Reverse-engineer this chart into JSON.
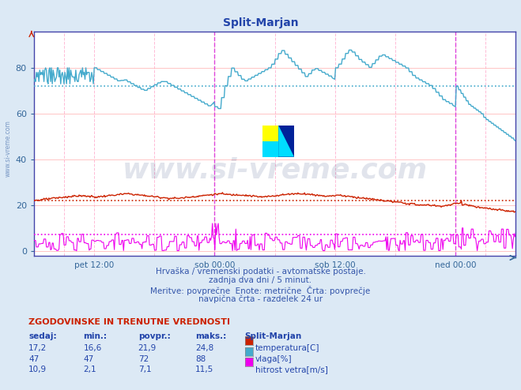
{
  "title": "Split-Marjan",
  "bg_color": "#dce9f5",
  "plot_bg_color": "#ffffff",
  "grid_h_color": "#ffbbbb",
  "grid_v_color": "#ffcccc",
  "x_labels": [
    "pet 12:00",
    "sob 00:00",
    "sob 12:00",
    "ned 00:00"
  ],
  "y_ticks": [
    0,
    20,
    40,
    60,
    80
  ],
  "y_min": -2,
  "y_max": 96,
  "temp_avg": 21.9,
  "temp_color": "#cc2200",
  "humidity_avg": 72,
  "humidity_color": "#44aacc",
  "wind_avg": 7.1,
  "wind_color": "#ee00ee",
  "caption_line1": "Hrvaška / vremenski podatki - avtomatske postaje.",
  "caption_line2": "zadnja dva dni / 5 minut.",
  "caption_line3": "Meritve: povprečne  Enote: metrične  Črta: povprečje",
  "caption_line4": "navpična črta - razdelek 24 ur",
  "table_header": "ZGODOVINSKE IN TRENUTNE VREDNOSTI",
  "col_headers": [
    "sedaj:",
    "min.:",
    "povpr.:",
    "maks.:",
    "Split-Marjan"
  ],
  "row1_vals": [
    "17,2",
    "16,6",
    "21,9",
    "24,8"
  ],
  "row2_vals": [
    "47",
    "47",
    "72",
    "88"
  ],
  "row3_vals": [
    "10,9",
    "2,1",
    "7,1",
    "11,5"
  ],
  "row1_label": "temperatura[C]",
  "row2_label": "vlaga[%]",
  "row3_label": "hitrost vetra[m/s]",
  "row1_color": "#cc2200",
  "row2_color": "#44aacc",
  "row3_color": "#ee00ee",
  "watermark_text": "www.si-vreme.com",
  "watermark_color": "#1a3070",
  "sidebar_text": "www.si-vreme.com",
  "sidebar_color": "#6688bb",
  "vline_24h_color": "#dd44dd",
  "vline_12h_color": "#ffaacc",
  "axis_color": "#4444aa",
  "tick_color": "#336699",
  "num_points": 576
}
